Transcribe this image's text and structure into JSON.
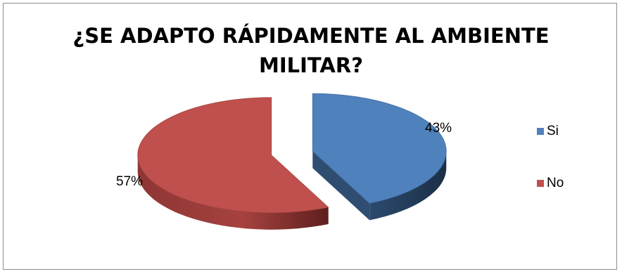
{
  "chart_data": {
    "type": "pie",
    "title_lines": [
      "¿SE ADAPTO RÁPIDAMENTE AL AMBIENTE",
      "MILITAR?"
    ],
    "categories": [
      "Si",
      "No"
    ],
    "values": [
      43,
      57
    ],
    "labels": [
      "43%",
      "57%"
    ],
    "colors": [
      "#4F81BD",
      "#C0504D"
    ],
    "legend_position": "right",
    "style": "3d-exploded"
  }
}
